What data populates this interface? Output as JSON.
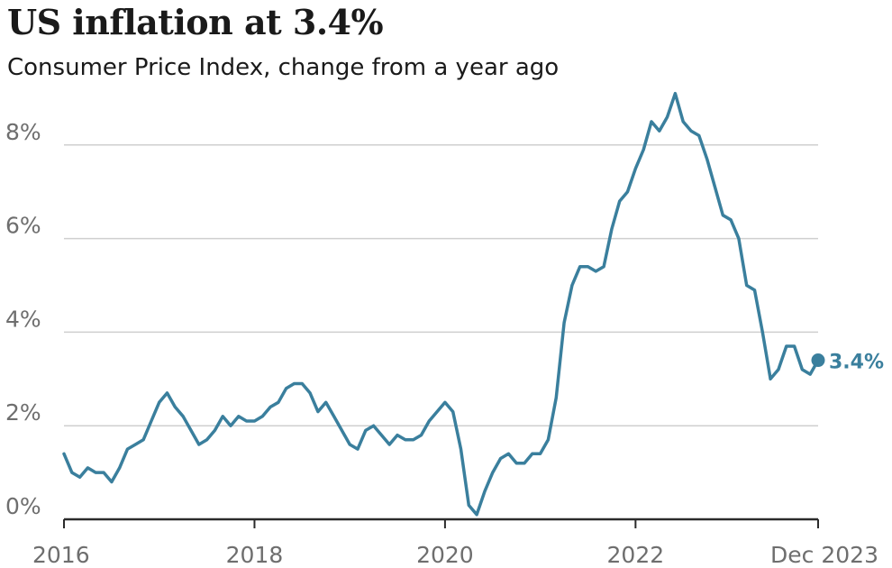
{
  "chart_data": {
    "type": "line",
    "title": "US inflation at 3.4%",
    "subtitle": "Consumer Price Index, change from a year ago",
    "xlabel": "",
    "ylabel": "",
    "x_ticks": [
      "2016",
      "2018",
      "2020",
      "2022",
      "Dec 2023"
    ],
    "y_ticks": [
      "0%",
      "2%",
      "4%",
      "6%",
      "8%"
    ],
    "ylim": [
      0,
      9.1
    ],
    "grid": true,
    "line_color": "#3a7f9d",
    "end_label": "3.4%",
    "series": [
      {
        "x": [
          "2016-01",
          "2016-02",
          "2016-03",
          "2016-04",
          "2016-05",
          "2016-06",
          "2016-07",
          "2016-08",
          "2016-09",
          "2016-10",
          "2016-11",
          "2016-12",
          "2017-01",
          "2017-02",
          "2017-03",
          "2017-04",
          "2017-05",
          "2017-06",
          "2017-07",
          "2017-08",
          "2017-09",
          "2017-10",
          "2017-11",
          "2017-12",
          "2018-01",
          "2018-02",
          "2018-03",
          "2018-04",
          "2018-05",
          "2018-06",
          "2018-07",
          "2018-08",
          "2018-09",
          "2018-10",
          "2018-11",
          "2018-12",
          "2019-01",
          "2019-02",
          "2019-03",
          "2019-04",
          "2019-05",
          "2019-06",
          "2019-07",
          "2019-08",
          "2019-09",
          "2019-10",
          "2019-11",
          "2019-12",
          "2020-01",
          "2020-02",
          "2020-03",
          "2020-04",
          "2020-05",
          "2020-06",
          "2020-07",
          "2020-08",
          "2020-09",
          "2020-10",
          "2020-11",
          "2020-12",
          "2021-01",
          "2021-02",
          "2021-03",
          "2021-04",
          "2021-05",
          "2021-06",
          "2021-07",
          "2021-08",
          "2021-09",
          "2021-10",
          "2021-11",
          "2021-12",
          "2022-01",
          "2022-02",
          "2022-03",
          "2022-04",
          "2022-05",
          "2022-06",
          "2022-07",
          "2022-08",
          "2022-09",
          "2022-10",
          "2022-11",
          "2022-12",
          "2023-01",
          "2023-02",
          "2023-03",
          "2023-04",
          "2023-05",
          "2023-06",
          "2023-07",
          "2023-08",
          "2023-09",
          "2023-10",
          "2023-11",
          "2023-12"
        ],
        "values": [
          1.4,
          1.0,
          0.9,
          1.1,
          1.0,
          1.0,
          0.8,
          1.1,
          1.5,
          1.6,
          1.7,
          2.1,
          2.5,
          2.7,
          2.4,
          2.2,
          1.9,
          1.6,
          1.7,
          1.9,
          2.2,
          2.0,
          2.2,
          2.1,
          2.1,
          2.2,
          2.4,
          2.5,
          2.8,
          2.9,
          2.9,
          2.7,
          2.3,
          2.5,
          2.2,
          1.9,
          1.6,
          1.5,
          1.9,
          2.0,
          1.8,
          1.6,
          1.8,
          1.7,
          1.7,
          1.8,
          2.1,
          2.3,
          2.5,
          2.3,
          1.5,
          0.3,
          0.1,
          0.6,
          1.0,
          1.3,
          1.4,
          1.2,
          1.2,
          1.4,
          1.4,
          1.7,
          2.6,
          4.2,
          5.0,
          5.4,
          5.4,
          5.3,
          5.4,
          6.2,
          6.8,
          7.0,
          7.5,
          7.9,
          8.5,
          8.3,
          8.6,
          9.1,
          8.5,
          8.3,
          8.2,
          7.7,
          7.1,
          6.5,
          6.4,
          6.0,
          5.0,
          4.9,
          4.0,
          3.0,
          3.2,
          3.7,
          3.7,
          3.2,
          3.1,
          3.4
        ]
      }
    ]
  }
}
